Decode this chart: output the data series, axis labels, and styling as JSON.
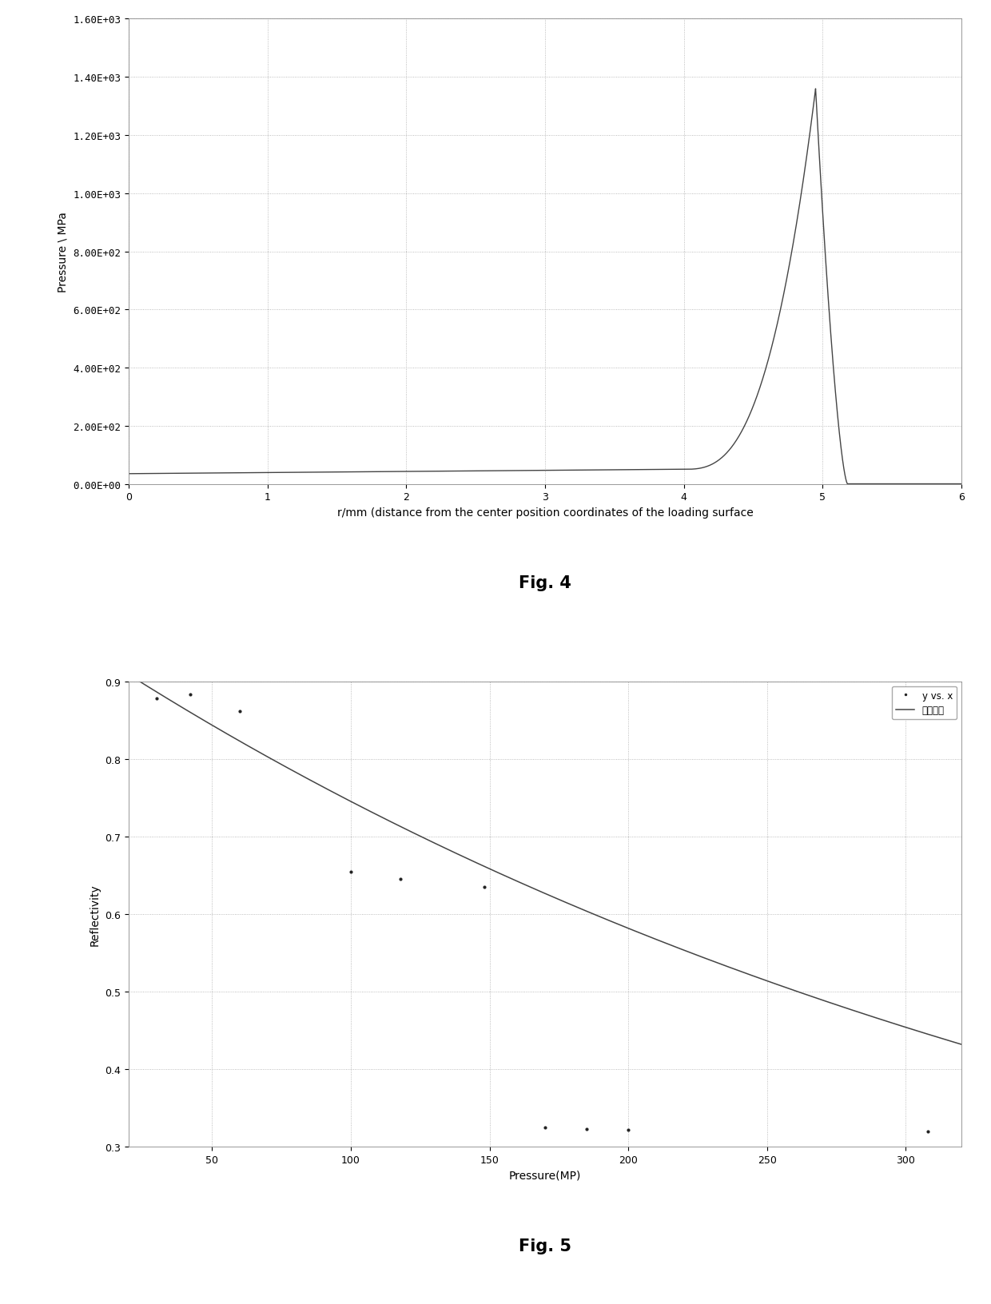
{
  "fig4": {
    "title": "Fig. 4",
    "xlabel": "r/mm (distance from the center position coordinates of the loading surface",
    "ylabel": "Pressure \\ MPa",
    "xlim": [
      0,
      6
    ],
    "ylim": [
      0,
      1600
    ],
    "yticks": [
      0,
      200,
      400,
      600,
      800,
      1000,
      1200,
      1400,
      1600
    ],
    "ytick_labels": [
      "0.00E+00",
      "2.00E+02",
      "4.00E+02",
      "6.00E+02",
      "8.00E+02",
      "1.00E+03",
      "1.20E+03",
      "1.40E+03",
      "1.60E+03"
    ],
    "xticks": [
      0,
      1,
      2,
      3,
      4,
      5,
      6
    ],
    "peak_x": 4.95,
    "peak_val": 1360,
    "drop_end": 5.18,
    "baseline": 35,
    "curve_color": "#444444",
    "bg_color": "#ffffff",
    "grid_color": "#aaaaaa"
  },
  "fig5": {
    "title": "Fig. 5",
    "xlabel": "Pressure(MP)",
    "ylabel": "Reflectivity",
    "xlim": [
      20,
      320
    ],
    "ylim": [
      0.3,
      0.9
    ],
    "xticks": [
      50,
      100,
      150,
      200,
      250,
      300
    ],
    "yticks": [
      0.3,
      0.4,
      0.5,
      0.6,
      0.7,
      0.8,
      0.9
    ],
    "scatter_x": [
      30,
      42,
      60,
      100,
      118,
      148,
      170,
      185,
      200,
      308
    ],
    "scatter_y": [
      0.878,
      0.883,
      0.862,
      0.655,
      0.645,
      0.635,
      0.325,
      0.323,
      0.322,
      0.32
    ],
    "scatter_color": "#222222",
    "curve_color": "#444444",
    "fit_a": 0.955,
    "fit_b": -0.00248,
    "legend_dot_label": "y vs. x",
    "legend_line_label": "拟合曲線",
    "bg_color": "#ffffff",
    "grid_color": "#aaaaaa"
  },
  "background_color": "#ffffff"
}
